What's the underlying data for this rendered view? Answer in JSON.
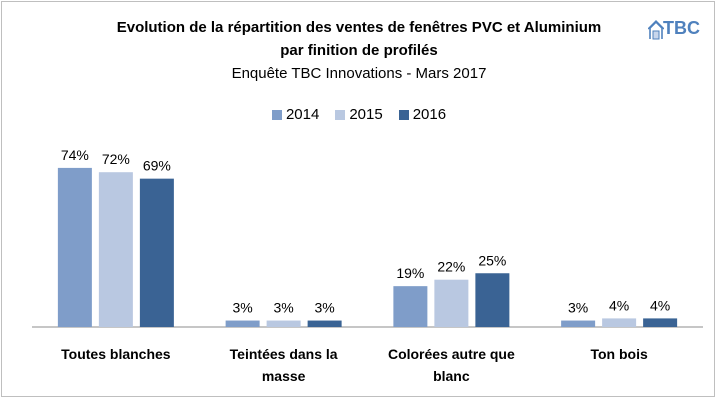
{
  "chart_data": {
    "type": "bar",
    "title": "Evolution de la répartition des ventes de fenêtres PVC et Aluminium",
    "title_line2": "par  finition de profilés",
    "subtitle": "Enquête TBC Innovations - Mars 2017",
    "categories": [
      [
        "Toutes blanches"
      ],
      [
        "Teintées dans la",
        "masse"
      ],
      [
        "Colorées autre que",
        "blanc"
      ],
      [
        "Ton bois"
      ]
    ],
    "series": [
      {
        "name": "2014",
        "color": "#7f9dc9",
        "values": [
          74,
          3,
          19,
          3
        ],
        "labels": [
          "74%",
          "3%",
          "19%",
          "3%"
        ]
      },
      {
        "name": "2015",
        "color": "#b9c8e1",
        "values": [
          72,
          3,
          22,
          4
        ],
        "labels": [
          "72%",
          "3%",
          "22%",
          "4%"
        ]
      },
      {
        "name": "2016",
        "color": "#3a6394",
        "values": [
          69,
          3,
          25,
          4
        ],
        "labels": [
          "69%",
          "3%",
          "25%",
          "4%"
        ]
      }
    ],
    "ylim": [
      0,
      90
    ],
    "grid": false,
    "legend_position": "top"
  },
  "logo": {
    "text": "TBC",
    "color": "#4f81bd"
  }
}
